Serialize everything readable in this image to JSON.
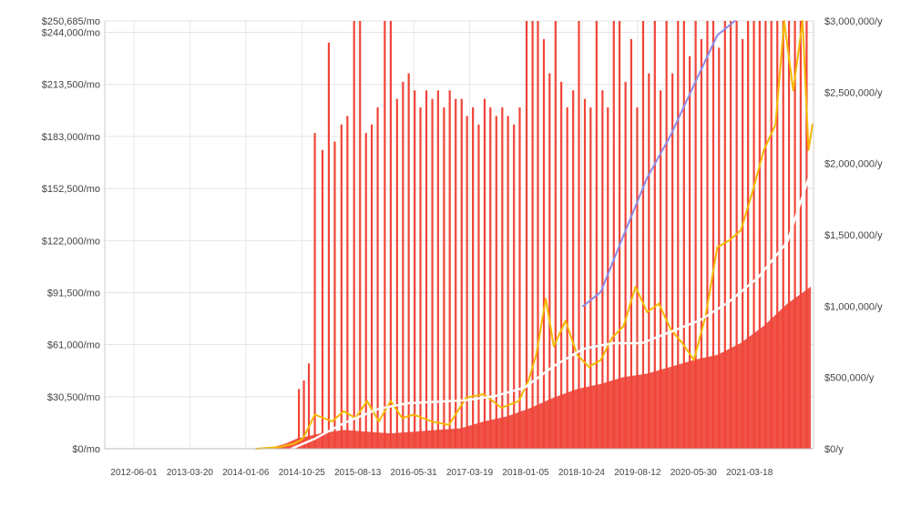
{
  "chart_data": {
    "type": "line",
    "title": "",
    "xlabel": "",
    "ylabel": "",
    "grid": true,
    "x_range": [
      "2012-01-01",
      "2022-02-15"
    ],
    "y_left": {
      "range": [
        0,
        250685
      ],
      "ticks": [
        0,
        30500,
        61000,
        91500,
        122000,
        152500,
        183000,
        213500,
        244000,
        250685
      ],
      "tick_labels": [
        "$0/mo",
        "$30,500/mo",
        "$61,000/mo",
        "$91,500/mo",
        "$122,000/mo",
        "$152,500/mo",
        "$183,000/mo",
        "$213,500/mo",
        "$244,000/mo",
        "$250,685/mo"
      ]
    },
    "y_right": {
      "range": [
        0,
        3000000
      ],
      "ticks": [
        0,
        500000,
        1000000,
        1500000,
        2000000,
        2500000,
        3000000
      ],
      "tick_labels": [
        "$0/y",
        "$500,000/y",
        "$1,000,000/y",
        "$1,500,000/y",
        "$2,000,000/y",
        "$2,500,000/y",
        "$3,000,000/y"
      ]
    },
    "x_ticks": [
      "2012-06-01",
      "2013-03-20",
      "2014-01-06",
      "2014-10-25",
      "2015-08-13",
      "2016-05-31",
      "2017-03-19",
      "2018-01-05",
      "2018-10-24",
      "2019-08-12",
      "2020-05-30",
      "2021-03-18"
    ],
    "series": [
      {
        "key": "daily",
        "axis": "left",
        "color": "#f04438",
        "points": [
          [
            "2014-05-01",
            0
          ],
          [
            "2014-08-01",
            3000
          ],
          [
            "2014-10-01",
            6000
          ],
          [
            "2015-02-01",
            9000
          ],
          [
            "2015-06-01",
            11000
          ],
          [
            "2015-10-01",
            10000
          ],
          [
            "2016-02-01",
            9000
          ],
          [
            "2016-06-01",
            10000
          ],
          [
            "2016-10-01",
            11000
          ],
          [
            "2017-02-01",
            12000
          ],
          [
            "2017-06-01",
            16000
          ],
          [
            "2017-10-01",
            19000
          ],
          [
            "2018-02-01",
            24000
          ],
          [
            "2018-06-01",
            30000
          ],
          [
            "2018-10-01",
            35000
          ],
          [
            "2019-02-01",
            38000
          ],
          [
            "2019-06-01",
            42000
          ],
          [
            "2019-10-01",
            44000
          ],
          [
            "2020-02-01",
            48000
          ],
          [
            "2020-06-01",
            52000
          ],
          [
            "2020-10-01",
            55000
          ],
          [
            "2021-02-01",
            62000
          ],
          [
            "2021-06-01",
            72000
          ],
          [
            "2021-10-01",
            85000
          ],
          [
            "2022-02-01",
            95000
          ]
        ],
        "spikes": [
          [
            "2014-10-10",
            35000
          ],
          [
            "2014-11-05",
            40000
          ],
          [
            "2014-12-01",
            50000
          ],
          [
            "2015-01-01",
            185000
          ],
          [
            "2015-02-10",
            175000
          ],
          [
            "2015-03-15",
            238000
          ],
          [
            "2015-04-15",
            180000
          ],
          [
            "2015-05-20",
            190000
          ],
          [
            "2015-06-20",
            195000
          ],
          [
            "2015-07-25",
            250685
          ],
          [
            "2015-08-25",
            250685
          ],
          [
            "2015-09-25",
            185000
          ],
          [
            "2015-10-25",
            190000
          ],
          [
            "2015-11-25",
            200000
          ],
          [
            "2016-01-01",
            250685
          ],
          [
            "2016-02-01",
            250685
          ],
          [
            "2016-03-05",
            205000
          ],
          [
            "2016-04-05",
            215000
          ],
          [
            "2016-05-05",
            220000
          ],
          [
            "2016-06-05",
            210000
          ],
          [
            "2016-07-05",
            200000
          ],
          [
            "2016-08-05",
            210000
          ],
          [
            "2016-09-05",
            205000
          ],
          [
            "2016-10-05",
            210000
          ],
          [
            "2016-11-05",
            200000
          ],
          [
            "2016-12-05",
            210000
          ],
          [
            "2017-01-05",
            205000
          ],
          [
            "2017-02-05",
            205000
          ],
          [
            "2017-03-05",
            195000
          ],
          [
            "2017-04-05",
            200000
          ],
          [
            "2017-05-05",
            190000
          ],
          [
            "2017-06-05",
            205000
          ],
          [
            "2017-07-05",
            200000
          ],
          [
            "2017-08-05",
            195000
          ],
          [
            "2017-09-05",
            200000
          ],
          [
            "2017-10-05",
            195000
          ],
          [
            "2017-11-05",
            190000
          ],
          [
            "2017-12-05",
            200000
          ],
          [
            "2018-01-10",
            250685
          ],
          [
            "2018-02-10",
            250685
          ],
          [
            "2018-03-10",
            250685
          ],
          [
            "2018-04-10",
            240000
          ],
          [
            "2018-05-10",
            220000
          ],
          [
            "2018-06-10",
            250685
          ],
          [
            "2018-07-10",
            215000
          ],
          [
            "2018-08-10",
            200000
          ],
          [
            "2018-09-10",
            210000
          ],
          [
            "2018-10-10",
            250685
          ],
          [
            "2018-11-10",
            205000
          ],
          [
            "2018-12-10",
            200000
          ],
          [
            "2019-01-10",
            250685
          ],
          [
            "2019-02-10",
            210000
          ],
          [
            "2019-03-10",
            200000
          ],
          [
            "2019-04-10",
            250685
          ],
          [
            "2019-05-10",
            250685
          ],
          [
            "2019-06-10",
            215000
          ],
          [
            "2019-07-10",
            240000
          ],
          [
            "2019-08-10",
            200000
          ],
          [
            "2019-09-10",
            250685
          ],
          [
            "2019-10-10",
            220000
          ],
          [
            "2019-11-10",
            250685
          ],
          [
            "2019-12-10",
            210000
          ],
          [
            "2020-01-10",
            250685
          ],
          [
            "2020-02-10",
            220000
          ],
          [
            "2020-03-10",
            250685
          ],
          [
            "2020-04-10",
            250685
          ],
          [
            "2020-05-10",
            230000
          ],
          [
            "2020-06-10",
            250685
          ],
          [
            "2020-07-10",
            240000
          ],
          [
            "2020-08-10",
            250685
          ],
          [
            "2020-09-10",
            250685
          ],
          [
            "2020-10-10",
            235000
          ],
          [
            "2020-11-10",
            250685
          ],
          [
            "2020-12-10",
            250685
          ],
          [
            "2021-01-10",
            250685
          ],
          [
            "2021-02-10",
            240000
          ],
          [
            "2021-03-10",
            250685
          ],
          [
            "2021-04-10",
            250685
          ],
          [
            "2021-05-10",
            250685
          ],
          [
            "2021-06-10",
            250685
          ],
          [
            "2021-07-10",
            250685
          ],
          [
            "2021-08-10",
            250685
          ],
          [
            "2021-09-10",
            250685
          ],
          [
            "2021-10-10",
            250685
          ],
          [
            "2021-11-10",
            250685
          ],
          [
            "2021-12-10",
            250685
          ],
          [
            "2022-01-10",
            250685
          ]
        ]
      },
      {
        "key": "monthly_average",
        "axis": "left",
        "color": "#f5b800",
        "points": [
          [
            "2014-03-01",
            0
          ],
          [
            "2014-07-01",
            1000
          ],
          [
            "2014-09-15",
            3000
          ],
          [
            "2014-11-01",
            6000
          ],
          [
            "2015-01-01",
            20000
          ],
          [
            "2015-04-01",
            16000
          ],
          [
            "2015-06-01",
            22000
          ],
          [
            "2015-08-01",
            18000
          ],
          [
            "2015-10-01",
            28000
          ],
          [
            "2015-12-01",
            16000
          ],
          [
            "2016-02-01",
            28000
          ],
          [
            "2016-04-01",
            18000
          ],
          [
            "2016-06-01",
            20000
          ],
          [
            "2016-09-01",
            16000
          ],
          [
            "2016-12-01",
            14000
          ],
          [
            "2017-03-01",
            30000
          ],
          [
            "2017-06-01",
            32000
          ],
          [
            "2017-09-01",
            24000
          ],
          [
            "2017-12-01",
            28000
          ],
          [
            "2018-01-20",
            40000
          ],
          [
            "2018-03-01",
            55000
          ],
          [
            "2018-04-20",
            88000
          ],
          [
            "2018-06-01",
            60000
          ],
          [
            "2018-08-01",
            75000
          ],
          [
            "2018-10-01",
            55000
          ],
          [
            "2018-12-01",
            48000
          ],
          [
            "2019-02-01",
            52000
          ],
          [
            "2019-04-01",
            65000
          ],
          [
            "2019-06-01",
            72000
          ],
          [
            "2019-08-01",
            95000
          ],
          [
            "2019-10-01",
            80000
          ],
          [
            "2019-12-01",
            85000
          ],
          [
            "2020-02-01",
            70000
          ],
          [
            "2020-04-01",
            62000
          ],
          [
            "2020-06-01",
            52000
          ],
          [
            "2020-08-01",
            78000
          ],
          [
            "2020-10-01",
            118000
          ],
          [
            "2020-12-01",
            122000
          ],
          [
            "2021-02-01",
            128000
          ],
          [
            "2021-04-01",
            150000
          ],
          [
            "2021-06-01",
            175000
          ],
          [
            "2021-08-01",
            190000
          ],
          [
            "2021-09-15",
            250685
          ],
          [
            "2021-11-01",
            210000
          ],
          [
            "2021-12-20",
            250685
          ],
          [
            "2022-01-20",
            175000
          ],
          [
            "2022-02-10",
            190000
          ]
        ]
      },
      {
        "key": "annual_run_rate",
        "axis": "right",
        "color": "#ffffff",
        "points": [
          [
            "2014-09-01",
            0
          ],
          [
            "2015-01-01",
            70000
          ],
          [
            "2015-06-01",
            180000
          ],
          [
            "2015-12-01",
            280000
          ],
          [
            "2016-05-01",
            320000
          ],
          [
            "2016-10-01",
            330000
          ],
          [
            "2017-03-01",
            340000
          ],
          [
            "2017-08-01",
            370000
          ],
          [
            "2018-01-01",
            430000
          ],
          [
            "2018-06-01",
            580000
          ],
          [
            "2018-11-01",
            700000
          ],
          [
            "2019-04-01",
            740000
          ],
          [
            "2019-09-01",
            740000
          ],
          [
            "2020-02-01",
            820000
          ],
          [
            "2020-07-01",
            900000
          ],
          [
            "2020-12-01",
            1030000
          ],
          [
            "2021-05-01",
            1200000
          ],
          [
            "2021-10-01",
            1450000
          ],
          [
            "2022-02-15",
            2000000
          ]
        ]
      },
      {
        "key": "projection",
        "axis": "right",
        "color": "#8c8ce8",
        "points": [
          [
            "2018-11-01",
            1000000
          ],
          [
            "2019-02-01",
            1100000
          ],
          [
            "2019-06-01",
            1500000
          ],
          [
            "2019-10-01",
            1900000
          ],
          [
            "2020-02-01",
            2200000
          ],
          [
            "2020-06-01",
            2550000
          ],
          [
            "2020-10-01",
            2900000
          ],
          [
            "2021-01-01",
            3000000
          ]
        ]
      }
    ]
  }
}
